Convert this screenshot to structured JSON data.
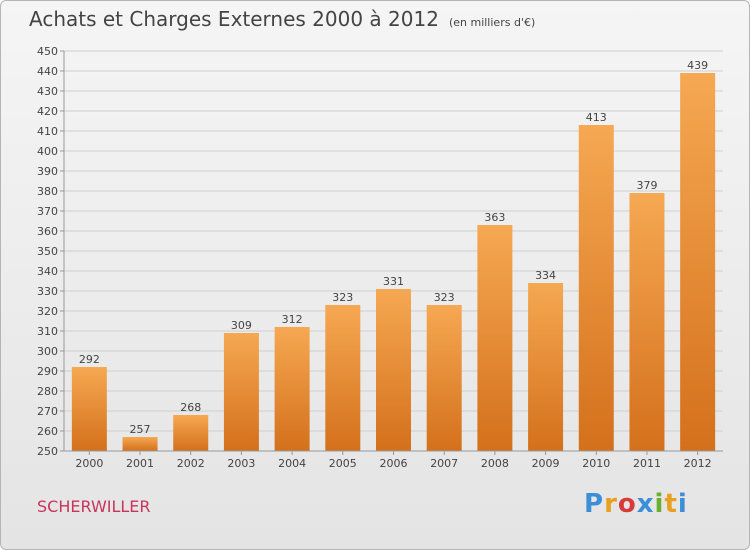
{
  "title": "Achats et Charges Externes 2000 à 2012",
  "unit": "(en milliers d'€)",
  "commune": "SCHERWILLER",
  "logo": {
    "text": "Proxiti",
    "letters": [
      "P",
      "r",
      "o",
      "x",
      "i",
      "t",
      "i"
    ],
    "letter_colors": [
      "#3a8fd8",
      "#e8a020",
      "#d83a3a",
      "#3a8fd8",
      "#6ab030",
      "#e8a020",
      "#3a8fd8"
    ]
  },
  "colors": {
    "bar_light": "#f6a852",
    "bar_dark": "#d4701c",
    "grid": "#cfcfcf",
    "axis": "#999999",
    "text": "#444444"
  },
  "chart_data": {
    "type": "bar",
    "categories": [
      "2000",
      "2001",
      "2002",
      "2003",
      "2004",
      "2005",
      "2006",
      "2007",
      "2008",
      "2009",
      "2010",
      "2011",
      "2012"
    ],
    "values": [
      292,
      257,
      268,
      309,
      312,
      323,
      331,
      323,
      363,
      334,
      413,
      379,
      439
    ],
    "ylim": [
      250,
      450
    ],
    "ytick_step": 10,
    "grid": true,
    "data_labels": true
  }
}
